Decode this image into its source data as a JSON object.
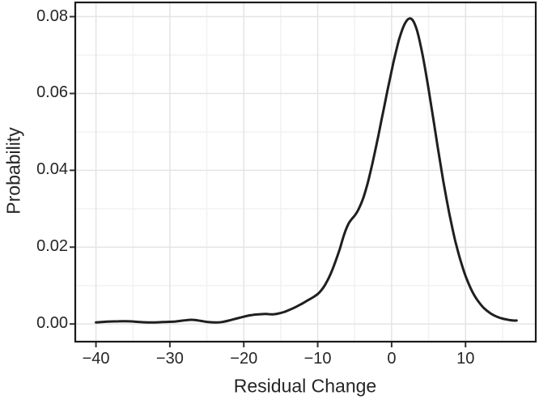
{
  "style": {
    "background": "#ffffff",
    "panel_border": "#1a1a1a",
    "grid_major": "#e4e4e4",
    "grid_minor": "#f2f2f2",
    "tick_mark_color": "#333333",
    "text_color": "#262626",
    "curve_color": "#1f1f1f"
  },
  "chart_data": {
    "type": "line",
    "subtype": "density-curve",
    "title": "",
    "xlabel": "Residual Change",
    "ylabel": "Probability",
    "legend": "none",
    "grid": "major+minor",
    "xlim": [
      -42.8,
      19.5
    ],
    "ylim": [
      -0.0046,
      0.0837
    ],
    "x_ticks": {
      "values": [
        -40,
        -30,
        -20,
        -10,
        0,
        10
      ],
      "labels": [
        "−40",
        "−30",
        "−20",
        "−10",
        "0",
        "10"
      ]
    },
    "y_ticks": {
      "values": [
        0,
        0.02,
        0.04,
        0.06,
        0.08
      ],
      "labels": [
        "0.00",
        "0.02",
        "0.04",
        "0.06",
        "0.08"
      ]
    },
    "x_minor": [
      -35,
      -25,
      -15,
      -5,
      5,
      15
    ],
    "y_minor": [
      0.01,
      0.03,
      0.05,
      0.07
    ],
    "peak": {
      "x": 2.4,
      "y": 0.0795
    },
    "series": [
      {
        "name": "density",
        "color": "#1f1f1f",
        "stroke_width": 3,
        "points": [
          [
            -40,
            0.0004
          ],
          [
            -38.5,
            0.0006
          ],
          [
            -37,
            0.0007
          ],
          [
            -35.5,
            0.0007
          ],
          [
            -34,
            0.0005
          ],
          [
            -32.5,
            0.0004
          ],
          [
            -31,
            0.0005
          ],
          [
            -29.5,
            0.0006
          ],
          [
            -28.2,
            0.0009
          ],
          [
            -27,
            0.0011
          ],
          [
            -25.8,
            0.0008
          ],
          [
            -24.8,
            0.0005
          ],
          [
            -23.8,
            0.0004
          ],
          [
            -23,
            0.0005
          ],
          [
            -22,
            0.0009
          ],
          [
            -21,
            0.0014
          ],
          [
            -20,
            0.0019
          ],
          [
            -19,
            0.0023
          ],
          [
            -18,
            0.0025
          ],
          [
            -17,
            0.0026
          ],
          [
            -16.2,
            0.0025
          ],
          [
            -15.4,
            0.0027
          ],
          [
            -14.6,
            0.0031
          ],
          [
            -13.8,
            0.0037
          ],
          [
            -13,
            0.0044
          ],
          [
            -12.2,
            0.0052
          ],
          [
            -11.4,
            0.0061
          ],
          [
            -10.6,
            0.007
          ],
          [
            -10,
            0.0078
          ],
          [
            -9.5,
            0.0088
          ],
          [
            -9,
            0.0102
          ],
          [
            -8.5,
            0.012
          ],
          [
            -8,
            0.0142
          ],
          [
            -7.5,
            0.0168
          ],
          [
            -7,
            0.0196
          ],
          [
            -6.6,
            0.0222
          ],
          [
            -6.2,
            0.0245
          ],
          [
            -5.8,
            0.0262
          ],
          [
            -5.4,
            0.0273
          ],
          [
            -5,
            0.0282
          ],
          [
            -4.6,
            0.0294
          ],
          [
            -4.2,
            0.031
          ],
          [
            -3.8,
            0.033
          ],
          [
            -3.4,
            0.0355
          ],
          [
            -3,
            0.0385
          ],
          [
            -2.6,
            0.0418
          ],
          [
            -2.2,
            0.0453
          ],
          [
            -1.8,
            0.049
          ],
          [
            -1.4,
            0.0528
          ],
          [
            -1,
            0.0566
          ],
          [
            -0.6,
            0.0604
          ],
          [
            -0.2,
            0.0641
          ],
          [
            0.2,
            0.0677
          ],
          [
            0.6,
            0.071
          ],
          [
            1,
            0.074
          ],
          [
            1.4,
            0.0764
          ],
          [
            1.8,
            0.0782
          ],
          [
            2.2,
            0.0793
          ],
          [
            2.6,
            0.0795
          ],
          [
            3,
            0.0786
          ],
          [
            3.4,
            0.0766
          ],
          [
            3.8,
            0.0736
          ],
          [
            4.2,
            0.0699
          ],
          [
            4.6,
            0.0657
          ],
          [
            5,
            0.0611
          ],
          [
            5.4,
            0.0563
          ],
          [
            5.8,
            0.0514
          ],
          [
            6.2,
            0.0465
          ],
          [
            6.6,
            0.0417
          ],
          [
            7,
            0.0371
          ],
          [
            7.4,
            0.0328
          ],
          [
            7.8,
            0.0288
          ],
          [
            8.2,
            0.0251
          ],
          [
            8.6,
            0.0217
          ],
          [
            9,
            0.0187
          ],
          [
            9.4,
            0.016
          ],
          [
            9.8,
            0.0136
          ],
          [
            10.2,
            0.0115
          ],
          [
            10.6,
            0.0097
          ],
          [
            11,
            0.0081
          ],
          [
            11.5,
            0.0065
          ],
          [
            12,
            0.0052
          ],
          [
            12.5,
            0.0041
          ],
          [
            13,
            0.0033
          ],
          [
            13.5,
            0.0026
          ],
          [
            14,
            0.0021
          ],
          [
            14.5,
            0.0017
          ],
          [
            15,
            0.0014
          ],
          [
            15.5,
            0.0012
          ],
          [
            16,
            0.001
          ],
          [
            16.5,
            0.0009
          ],
          [
            16.9,
            0.0009
          ]
        ]
      }
    ]
  }
}
